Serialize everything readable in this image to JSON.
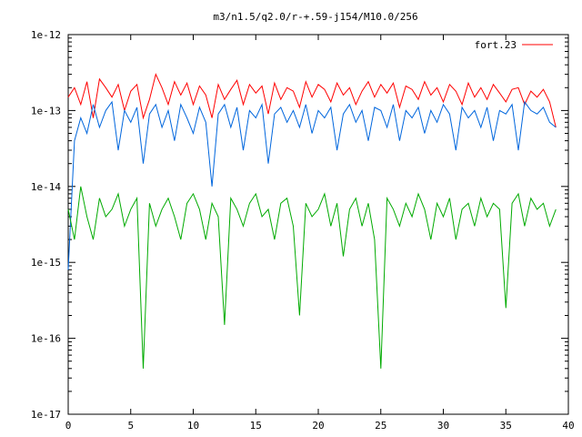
{
  "chart_data": {
    "type": "line",
    "title": "m3/n1.5/q2.0/r-+.59-j154/M10.0/256",
    "xlabel": "",
    "ylabel": "",
    "xlim": [
      0,
      40
    ],
    "ylim": [
      1e-17,
      1e-12
    ],
    "yscale": "log",
    "grid": false,
    "legend_position": "top-right",
    "xticks": [
      0,
      5,
      10,
      15,
      20,
      25,
      30,
      35,
      40
    ],
    "xtick_labels": [
      "0",
      "5",
      "10",
      "15",
      "20",
      "25",
      "30",
      "35",
      "40"
    ],
    "yticks": [
      1e-17,
      1e-16,
      1e-15,
      1e-14,
      1e-13,
      1e-12
    ],
    "ytick_labels": [
      "1e-17",
      "1e-16",
      "1e-15",
      "1e-14",
      "1e-13",
      "1e-12"
    ],
    "series": [
      {
        "name": "fort.23",
        "color": "#ff0000",
        "x": [
          0,
          0.5,
          1,
          1.5,
          2,
          2.5,
          3,
          3.5,
          4,
          4.5,
          5,
          5.5,
          6,
          6.5,
          7,
          7.5,
          8,
          8.5,
          9,
          9.5,
          10,
          10.5,
          11,
          11.5,
          12,
          12.5,
          13,
          13.5,
          14,
          14.5,
          15,
          15.5,
          16,
          16.5,
          17,
          17.5,
          18,
          18.5,
          19,
          19.5,
          20,
          20.5,
          21,
          21.5,
          22,
          22.5,
          23,
          23.5,
          24,
          24.5,
          25,
          25.5,
          26,
          26.5,
          27,
          27.5,
          28,
          28.5,
          29,
          29.5,
          30,
          30.5,
          31,
          31.5,
          32,
          32.5,
          33,
          33.5,
          34,
          34.5,
          35,
          35.5,
          36,
          36.5,
          37,
          37.5,
          38,
          38.5,
          39
        ],
        "y": [
          1.5e-13,
          2e-13,
          1.2e-13,
          2.4e-13,
          8e-14,
          2.6e-13,
          2e-13,
          1.5e-13,
          2.2e-13,
          1e-13,
          1.8e-13,
          2.2e-13,
          8e-14,
          1.4e-13,
          3e-13,
          2e-13,
          1.2e-13,
          2.4e-13,
          1.6e-13,
          2.3e-13,
          1.2e-13,
          2.1e-13,
          1.6e-13,
          8e-14,
          2.2e-13,
          1.4e-13,
          1.9e-13,
          2.5e-13,
          1.2e-13,
          2.2e-13,
          1.7e-13,
          2.1e-13,
          9e-14,
          2.3e-13,
          1.4e-13,
          2e-13,
          1.8e-13,
          1.1e-13,
          2.4e-13,
          1.5e-13,
          2.2e-13,
          1.9e-13,
          1.3e-13,
          2.3e-13,
          1.6e-13,
          2e-13,
          1.2e-13,
          1.8e-13,
          2.4e-13,
          1.5e-13,
          2.2e-13,
          1.7e-13,
          2.3e-13,
          1.1e-13,
          2.1e-13,
          1.9e-13,
          1.4e-13,
          2.4e-13,
          1.6e-13,
          2e-13,
          1.3e-13,
          2.2e-13,
          1.8e-13,
          1.2e-13,
          2.3e-13,
          1.5e-13,
          2e-13,
          1.4e-13,
          2.2e-13,
          1.7e-13,
          1.3e-13,
          1.9e-13,
          2e-13,
          1.2e-13,
          1.8e-13,
          1.5e-13,
          1.9e-13,
          1.3e-13,
          6e-14
        ]
      },
      {
        "color": "#0066dd",
        "x": [
          0,
          0.5,
          1,
          1.5,
          2,
          2.5,
          3,
          3.5,
          4,
          4.5,
          5,
          5.5,
          6,
          6.5,
          7,
          7.5,
          8,
          8.5,
          9,
          9.5,
          10,
          10.5,
          11,
          11.5,
          12,
          12.5,
          13,
          13.5,
          14,
          14.5,
          15,
          15.5,
          16,
          16.5,
          17,
          17.5,
          18,
          18.5,
          19,
          19.5,
          20,
          20.5,
          21,
          21.5,
          22,
          22.5,
          23,
          23.5,
          24,
          24.5,
          25,
          25.5,
          26,
          26.5,
          27,
          27.5,
          28,
          28.5,
          29,
          29.5,
          30,
          30.5,
          31,
          31.5,
          32,
          32.5,
          33,
          33.5,
          34,
          34.5,
          35,
          35.5,
          36,
          36.5,
          37,
          37.5,
          38,
          38.5,
          39
        ],
        "y": [
          8e-16,
          4e-14,
          8e-14,
          5e-14,
          1.2e-13,
          6e-14,
          1e-13,
          1.3e-13,
          3e-14,
          1e-13,
          7e-14,
          1.1e-13,
          2e-14,
          9e-14,
          1.2e-13,
          6e-14,
          1e-13,
          4e-14,
          1.2e-13,
          8e-14,
          5e-14,
          1.1e-13,
          7e-14,
          1e-14,
          9e-14,
          1.2e-13,
          6e-14,
          1.1e-13,
          3e-14,
          1e-13,
          8e-14,
          1.2e-13,
          2e-14,
          9e-14,
          1.1e-13,
          7e-14,
          1e-13,
          6e-14,
          1.2e-13,
          5e-14,
          1e-13,
          8e-14,
          1.1e-13,
          3e-14,
          9e-14,
          1.2e-13,
          7e-14,
          1e-13,
          4e-14,
          1.1e-13,
          1e-13,
          6e-14,
          1.2e-13,
          4e-14,
          1e-13,
          8e-14,
          1.1e-13,
          5e-14,
          1e-13,
          7e-14,
          1.2e-13,
          9e-14,
          3e-14,
          1.1e-13,
          8e-14,
          1e-13,
          6e-14,
          1.1e-13,
          4e-14,
          1e-13,
          9e-14,
          1.2e-13,
          3e-14,
          1.3e-13,
          1e-13,
          9e-14,
          1.1e-13,
          7e-14,
          6e-14
        ]
      },
      {
        "color": "#00aa00",
        "x": [
          0,
          0.5,
          1,
          1.5,
          2,
          2.5,
          3,
          3.5,
          4,
          4.5,
          5,
          5.5,
          6,
          6.5,
          7,
          7.5,
          8,
          8.5,
          9,
          9.5,
          10,
          10.5,
          11,
          11.5,
          12,
          12.5,
          13,
          13.5,
          14,
          14.5,
          15,
          15.5,
          16,
          16.5,
          17,
          17.5,
          18,
          18.5,
          19,
          19.5,
          20,
          20.5,
          21,
          21.5,
          22,
          22.5,
          23,
          23.5,
          24,
          24.5,
          25,
          25.5,
          26,
          26.5,
          27,
          27.5,
          28,
          28.5,
          29,
          29.5,
          30,
          30.5,
          31,
          31.5,
          32,
          32.5,
          33,
          33.5,
          34,
          34.5,
          35,
          35.5,
          36,
          36.5,
          37,
          37.5,
          38,
          38.5,
          39
        ],
        "y": [
          5e-15,
          2e-15,
          1e-14,
          4e-15,
          2e-15,
          7e-15,
          4e-15,
          5e-15,
          8e-15,
          3e-15,
          5e-15,
          7e-15,
          4e-17,
          6e-15,
          3e-15,
          5e-15,
          7e-15,
          4e-15,
          2e-15,
          6e-15,
          8e-15,
          5e-15,
          2e-15,
          6e-15,
          4e-15,
          1.5e-16,
          7e-15,
          5e-15,
          3e-15,
          6e-15,
          8e-15,
          4e-15,
          5e-15,
          2e-15,
          6e-15,
          7e-15,
          3e-15,
          2e-16,
          6e-15,
          4e-15,
          5e-15,
          8e-15,
          3e-15,
          6e-15,
          1.2e-15,
          5e-15,
          7e-15,
          3e-15,
          6e-15,
          2e-15,
          4e-17,
          7e-15,
          5e-15,
          3e-15,
          6e-15,
          4e-15,
          8e-15,
          5e-15,
          2e-15,
          6e-15,
          4e-15,
          7e-15,
          2e-15,
          5e-15,
          6e-15,
          3e-15,
          7e-15,
          4e-15,
          6e-15,
          5e-15,
          2.5e-16,
          6e-15,
          8e-15,
          3e-15,
          7e-15,
          5e-15,
          6e-15,
          3e-15,
          5e-15
        ]
      }
    ]
  }
}
